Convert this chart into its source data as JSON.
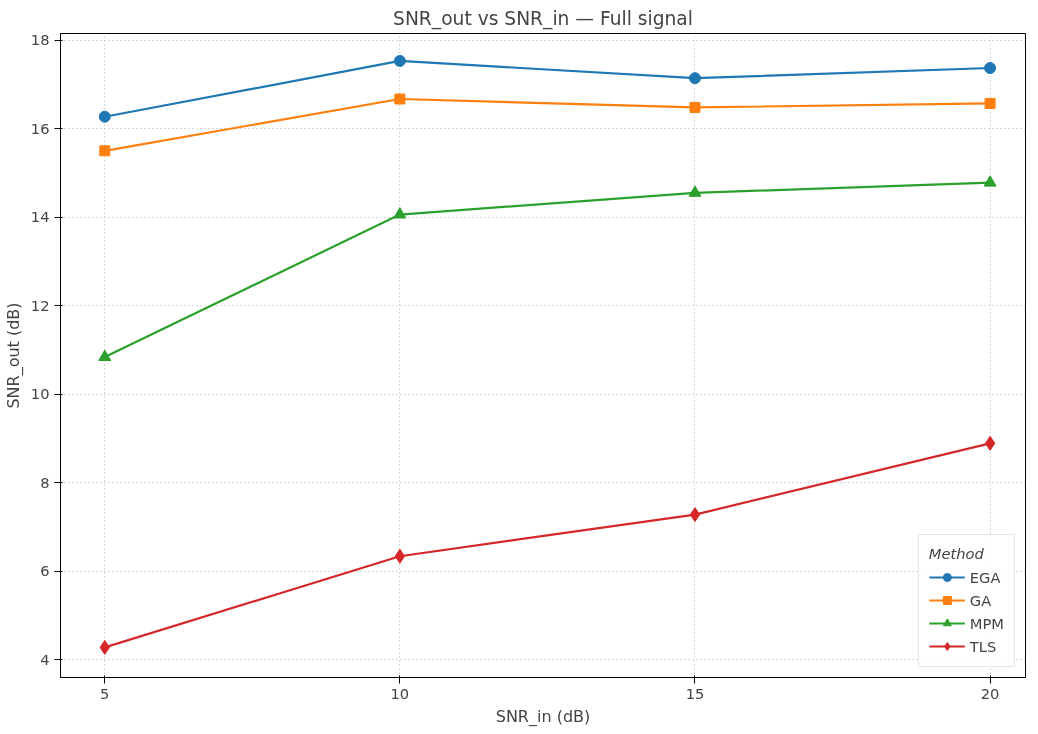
{
  "chart_data": {
    "type": "line",
    "title": "SNR_out vs SNR_in — Full signal",
    "xlabel": "SNR_in (dB)",
    "ylabel": "SNR_out (dB)",
    "legend_title": "Method",
    "legend": "bottom right",
    "grid": true,
    "line_style": "solid",
    "x": [
      5,
      10,
      15,
      20
    ],
    "xlim": [
      4.25,
      20.6
    ],
    "ylim": [
      3.6,
      18.15
    ],
    "xticks": [
      5,
      10,
      15,
      20
    ],
    "yticks": [
      4,
      6,
      8,
      10,
      12,
      14,
      16,
      18
    ],
    "series": [
      {
        "name": "EGA",
        "color": "#1f77b4",
        "marker": "circle",
        "values": [
          16.27,
          17.53,
          17.14,
          17.37
        ]
      },
      {
        "name": "GA",
        "color": "#ff7f0e",
        "marker": "square",
        "values": [
          15.5,
          16.67,
          16.48,
          16.57
        ]
      },
      {
        "name": "MPM",
        "color": "#2ca02c",
        "marker": "triangle",
        "values": [
          10.84,
          14.06,
          14.55,
          14.78
        ]
      },
      {
        "name": "TLS",
        "color": "#d62728",
        "marker": "diamond",
        "values": [
          4.28,
          6.34,
          7.28,
          8.89
        ]
      }
    ]
  }
}
